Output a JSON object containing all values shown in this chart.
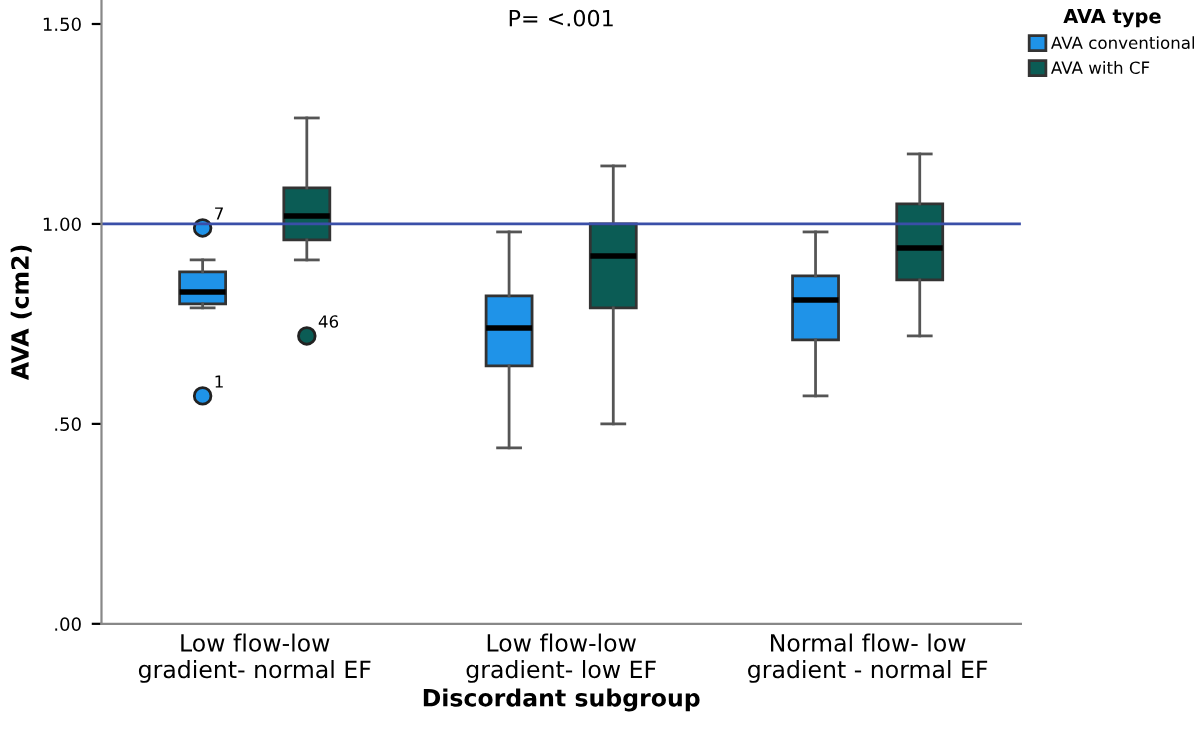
{
  "chart_data": {
    "type": "box",
    "xlabel": "Discordant subgroup",
    "ylabel": "AVA (cm2)",
    "legend_title": "AVA type",
    "legend": "top right",
    "categories": [
      "Low flow-low\ngradient- normal EF",
      "Low flow-low\ngradient- low EF",
      "Normal flow- low\ngradient - normal EF"
    ],
    "ylim": [
      0,
      1.56
    ],
    "yticks": [
      {
        "value": 0,
        "label": ".00"
      },
      {
        "value": 0.5,
        "label": ".50"
      },
      {
        "value": 1.0,
        "label": "1.00"
      },
      {
        "value": 1.5,
        "label": "1.50"
      }
    ],
    "series": [
      {
        "name": "AVA conventional",
        "color": "#1f93e8",
        "boxes": [
          {
            "low": 0.79,
            "q1": 0.8,
            "median": 0.83,
            "q3": 0.88,
            "high": 0.91,
            "outliers": [
              0.99,
              0.57
            ]
          },
          {
            "low": 0.44,
            "q1": 0.645,
            "median": 0.74,
            "q3": 0.82,
            "high": 0.98
          },
          {
            "low": 0.57,
            "q1": 0.71,
            "median": 0.81,
            "q3": 0.87,
            "high": 0.98
          }
        ]
      },
      {
        "name": "AVA with CF",
        "color": "#0b5c55",
        "boxes": [
          {
            "low": 0.91,
            "q1": 0.96,
            "median": 1.02,
            "q3": 1.09,
            "high": 1.265,
            "outliers": [
              0.72
            ]
          },
          {
            "low": 0.5,
            "q1": 0.79,
            "median": 0.92,
            "q3": 1.0,
            "high": 1.145
          },
          {
            "low": 0.72,
            "q1": 0.86,
            "median": 0.94,
            "q3": 1.05,
            "high": 1.175
          }
        ]
      }
    ],
    "ref_lines": [
      {
        "axis": "y",
        "value": 1.0,
        "color": "#3a4fa8"
      }
    ],
    "annotations": [
      "P= <.001",
      "7",
      "1",
      "46"
    ]
  }
}
